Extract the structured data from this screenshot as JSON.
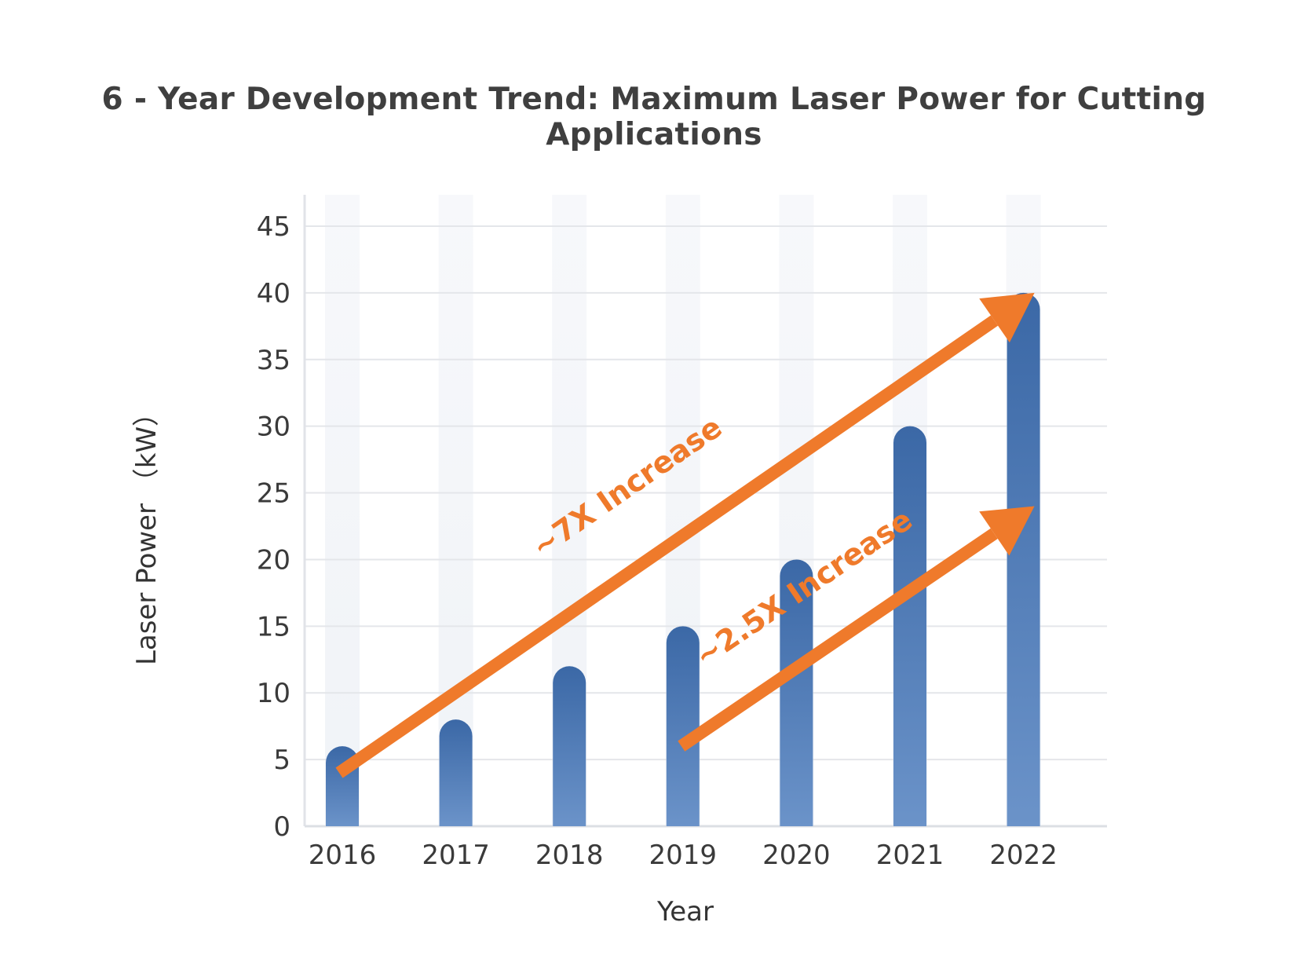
{
  "title": "6 - Year Development Trend: Maximum Laser Power for Cutting Applications",
  "colors": {
    "bar": "#3f6fae",
    "bar_light": "#6b93c9",
    "arrow": "#ef7a2b",
    "grid": "#e4e6ea",
    "band": "#f3f5f8"
  },
  "chart_data": {
    "type": "bar",
    "categories": [
      "2016",
      "2017",
      "2018",
      "2019",
      "2020",
      "2021",
      "2022"
    ],
    "values": [
      6,
      8,
      12,
      15,
      20,
      30,
      40
    ],
    "xlabel": "Year",
    "ylabel": "Laser Power （kW）",
    "ylim": [
      0,
      45
    ],
    "yticks": [
      0,
      5,
      10,
      15,
      20,
      25,
      30,
      35,
      40,
      45
    ],
    "grid": true,
    "annotations": [
      {
        "text": "~7X Increase",
        "from": {
          "x": "2016",
          "y": 4
        },
        "to": {
          "x": "2022",
          "y": 40
        }
      },
      {
        "text": "~2.5X Increase",
        "from": {
          "x": "2019",
          "y": 6
        },
        "to": {
          "x": "2022",
          "y": 24
        }
      }
    ]
  }
}
